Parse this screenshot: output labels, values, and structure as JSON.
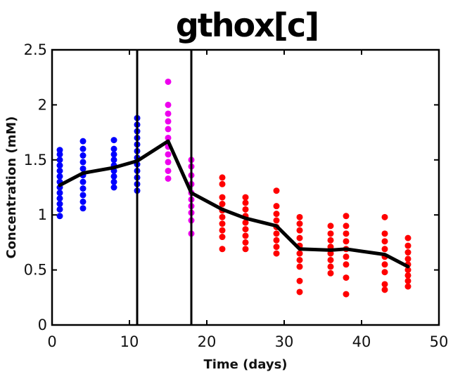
{
  "chart_data": {
    "type": "scatter",
    "title": "gthox[c]",
    "xlabel": "Time (days)",
    "ylabel": "Concentration (mM)",
    "xlim": [
      0,
      50
    ],
    "ylim": [
      0,
      2.5
    ],
    "xticks": [
      "0",
      "10",
      "20",
      "30",
      "40",
      "50"
    ],
    "yticks": [
      "0",
      "0.5",
      "1",
      "1.5",
      "2",
      "2.5"
    ],
    "grid": false,
    "legend": "none",
    "vertical_lines": [
      11,
      18
    ],
    "mean_line": {
      "color": "#000000",
      "x": [
        1,
        4,
        8,
        11,
        15,
        18,
        22,
        25,
        29,
        32,
        36,
        38,
        43,
        46
      ],
      "y": [
        1.27,
        1.38,
        1.43,
        1.49,
        1.67,
        1.2,
        1.05,
        0.97,
        0.9,
        0.69,
        0.68,
        0.69,
        0.64,
        0.53
      ]
    },
    "series": [
      {
        "color": "#0000ff",
        "points": [
          {
            "x": 1,
            "y": [
              0.99,
              1.05,
              1.1,
              1.15,
              1.2,
              1.25,
              1.3,
              1.35,
              1.4,
              1.45,
              1.5,
              1.55,
              1.59
            ]
          },
          {
            "x": 4,
            "y": [
              1.06,
              1.12,
              1.18,
              1.24,
              1.3,
              1.36,
              1.42,
              1.48,
              1.54,
              1.6,
              1.67
            ]
          },
          {
            "x": 8,
            "y": [
              1.25,
              1.3,
              1.35,
              1.4,
              1.45,
              1.5,
              1.55,
              1.6,
              1.68
            ]
          },
          {
            "x": 11,
            "y": [
              1.22,
              1.28,
              1.34,
              1.4,
              1.46,
              1.52,
              1.58,
              1.64,
              1.7,
              1.76,
              1.82,
              1.88
            ]
          }
        ]
      },
      {
        "color": "#ee00ee",
        "points": [
          {
            "x": 15,
            "y": [
              1.33,
              1.4,
              1.48,
              1.55,
              1.62,
              1.7,
              1.78,
              1.85,
              1.92,
              2.0,
              2.21
            ]
          },
          {
            "x": 18,
            "y": [
              0.83,
              0.95,
              1.02,
              1.08,
              1.14,
              1.2,
              1.28,
              1.36,
              1.44,
              1.5
            ]
          }
        ]
      },
      {
        "color": "#ff0000",
        "points": [
          {
            "x": 22,
            "y": [
              0.69,
              0.8,
              0.86,
              0.92,
              0.98,
              1.04,
              1.1,
              1.16,
              1.28,
              1.34
            ]
          },
          {
            "x": 25,
            "y": [
              0.69,
              0.75,
              0.81,
              0.87,
              0.93,
              0.99,
              1.05,
              1.11,
              1.16
            ]
          },
          {
            "x": 29,
            "y": [
              0.65,
              0.71,
              0.77,
              0.83,
              0.89,
              0.95,
              1.01,
              1.08,
              1.22
            ]
          },
          {
            "x": 32,
            "y": [
              0.3,
              0.4,
              0.53,
              0.59,
              0.65,
              0.72,
              0.79,
              0.86,
              0.92,
              0.98
            ]
          },
          {
            "x": 36,
            "y": [
              0.47,
              0.53,
              0.59,
              0.65,
              0.71,
              0.77,
              0.83,
              0.9
            ]
          },
          {
            "x": 38,
            "y": [
              0.28,
              0.43,
              0.55,
              0.62,
              0.69,
              0.76,
              0.83,
              0.9,
              0.99
            ]
          },
          {
            "x": 43,
            "y": [
              0.32,
              0.37,
              0.48,
              0.55,
              0.62,
              0.69,
              0.76,
              0.83,
              0.98
            ]
          },
          {
            "x": 46,
            "y": [
              0.35,
              0.4,
              0.45,
              0.5,
              0.55,
              0.6,
              0.66,
              0.72,
              0.79
            ]
          }
        ]
      }
    ]
  }
}
